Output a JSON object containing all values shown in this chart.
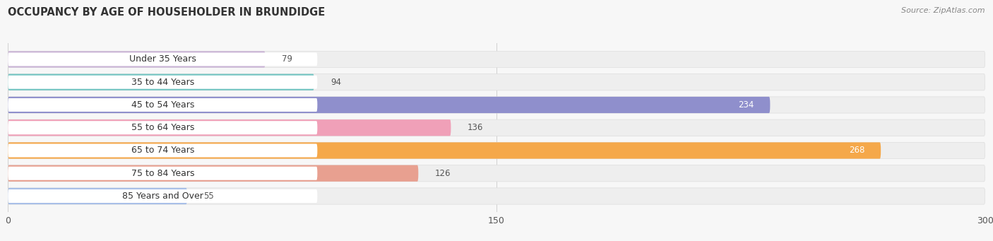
{
  "title": "OCCUPANCY BY AGE OF HOUSEHOLDER IN BRUNDIDGE",
  "source": "Source: ZipAtlas.com",
  "categories": [
    "Under 35 Years",
    "35 to 44 Years",
    "45 to 54 Years",
    "55 to 64 Years",
    "65 to 74 Years",
    "75 to 84 Years",
    "85 Years and Over"
  ],
  "values": [
    79,
    94,
    234,
    136,
    268,
    126,
    55
  ],
  "bar_colors": [
    "#c9b3d5",
    "#72c5c2",
    "#8f8fcc",
    "#f0a0b8",
    "#f5a84a",
    "#e8a090",
    "#a8bfe8"
  ],
  "bar_bg_color": "#eeeeee",
  "white_label_bg": "#ffffff",
  "xlim_min": 0,
  "xlim_max": 300,
  "xticks": [
    0,
    150,
    300
  ],
  "label_color_inside": "#ffffff",
  "label_color_outside": "#555555",
  "title_fontsize": 10.5,
  "source_fontsize": 8,
  "tick_fontsize": 9,
  "bar_label_fontsize": 8.5,
  "category_fontsize": 9,
  "bar_height": 0.72,
  "bg_color": "#f7f7f7",
  "fig_width": 14.06,
  "fig_height": 3.41,
  "inside_threshold": 180
}
